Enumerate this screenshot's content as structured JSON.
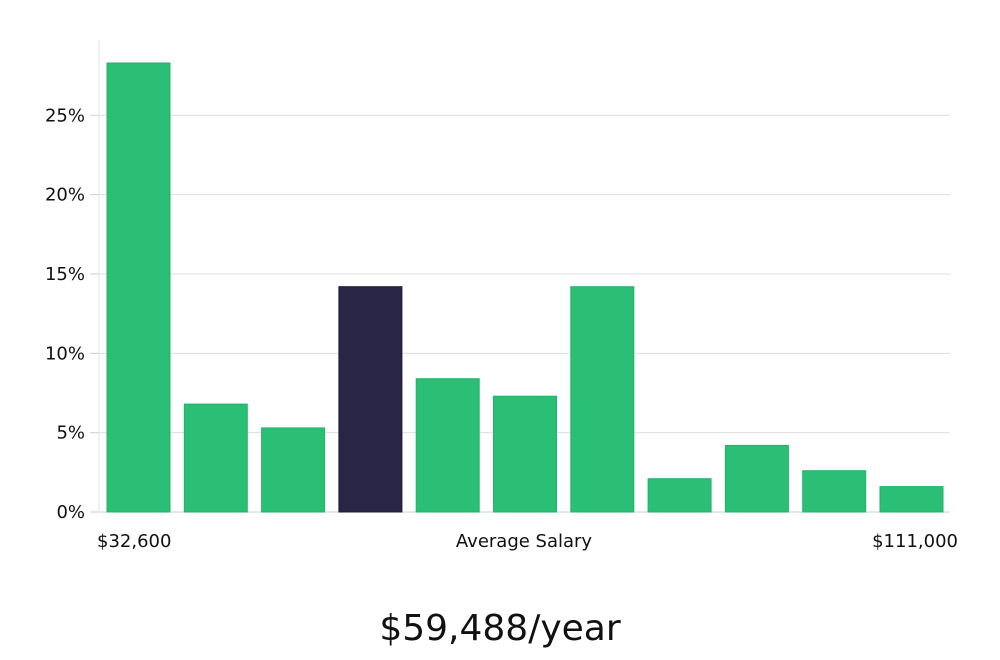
{
  "chart_data": {
    "type": "bar",
    "categories": [
      "1",
      "2",
      "3",
      "4",
      "5",
      "6",
      "7",
      "8",
      "9",
      "10",
      "11"
    ],
    "values": [
      28.3,
      6.8,
      5.3,
      14.2,
      8.4,
      7.3,
      14.2,
      2.1,
      4.2,
      2.6,
      1.6
    ],
    "highlight_index": 3,
    "ylim": [
      0,
      30
    ],
    "yticks": [
      0,
      5,
      10,
      15,
      20,
      25
    ],
    "ytick_labels": [
      "0%",
      "5%",
      "10%",
      "15%",
      "20%",
      "25%"
    ],
    "x_left_label": "$32,600",
    "x_center_label": "Average Salary",
    "x_right_label": "$111,000",
    "grid": true,
    "bar_color": "#2bbf76",
    "highlight_color": "#282546"
  },
  "summary": {
    "salary": "$59,488/year"
  }
}
